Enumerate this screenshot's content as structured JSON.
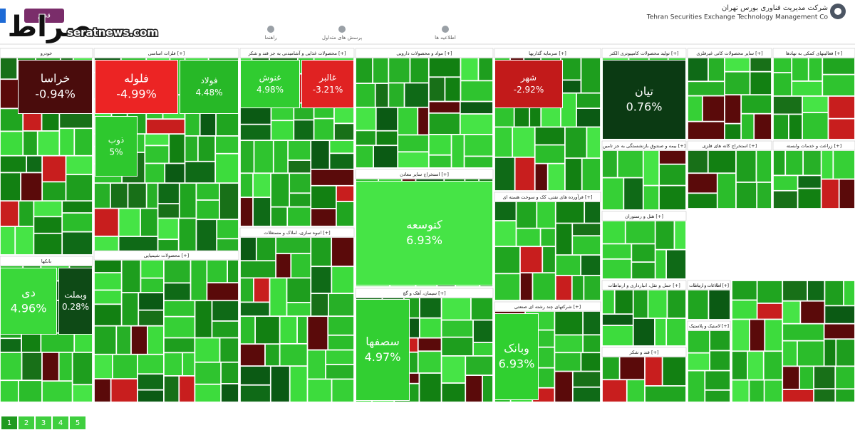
{
  "header": {
    "company_fa": "شرکت مدیریت فناوری بورس تهران",
    "company_en": "Tehran Securities Exchange Technology Management Co",
    "watermark": "seratnews.com",
    "logo": "صراط",
    "old_button": "قدیم",
    "nav": [
      "راهنما",
      "پرسش های متداول",
      "اطلاعیه ها"
    ]
  },
  "sectors": [
    "خودرو",
    "فلزات اساسی [+]",
    "محصولات غذایی و آشامیدنی به جز قند و شکر [+]",
    "مواد و محصولات دارویی [+]",
    "سرمایه گذاریها [+]",
    "تولید محصولات کامپیوتری الکتر [+]",
    "سایر محصولات کانی غیرفلزی [+]",
    "فعالیتهای کمکی به نهادها [+]",
    "بانکها",
    "محصولات شیمیایی [+]",
    "انبوه سازی، املاک و مستغلات [+]",
    "استخراج سایر معادن [+]",
    "سیمان، آهک و گچ [+]",
    "فرآورده های نفتی، کک و سوخت هسته ای [+]",
    "شرکتهای چند رشته ای صنعتی [+]",
    "بیمه و صندوق بازنشستگی به جز تامین [+]",
    "هتل و رستوران [+]",
    "استخراج کانه های فلزی [+]",
    "زراعت و خدمات وابسته [+]",
    "حمل و نقل، انبارداری و ارتباطات [+]",
    "قند و شکر [+]",
    "اطلاعات و ارتباطات [+]",
    "لاستیک و پلاستیک [+]"
  ],
  "tiles": [
    {
      "label": "خراسا",
      "pct": "-0.94%",
      "color": "#4a0c0c"
    },
    {
      "label": "فلوله",
      "pct": "-4.99%",
      "color": "#ec2424"
    },
    {
      "label": "فولاد",
      "pct": "4.48%",
      "color": "#27b827"
    },
    {
      "label": "ذوب",
      "pct": "5%",
      "color": "#2ec82e"
    },
    {
      "label": "غنوش",
      "pct": "4.98%",
      "color": "#30cc30"
    },
    {
      "label": "غالبر",
      "pct": "-3.21%",
      "color": "#e02222"
    },
    {
      "label": "تیان",
      "pct": "0.76%",
      "color": "#0b3a13"
    },
    {
      "label": "شهر",
      "pct": "-2.92%",
      "color": "#c21a1a"
    },
    {
      "label": "کتوسعه",
      "pct": "6.93%",
      "color": "#46e446"
    },
    {
      "label": "سصفها",
      "pct": "4.97%",
      "color": "#32cf32"
    },
    {
      "label": "دی",
      "pct": "4.96%",
      "color": "#3ad83a"
    },
    {
      "label": "وبملت",
      "pct": "0.28%",
      "color": "#0e4a16"
    },
    {
      "label": "وبانک",
      "pct": "6.93%",
      "color": "#30d030"
    }
  ],
  "pages": [
    "1",
    "2",
    "3",
    "4",
    "5"
  ]
}
